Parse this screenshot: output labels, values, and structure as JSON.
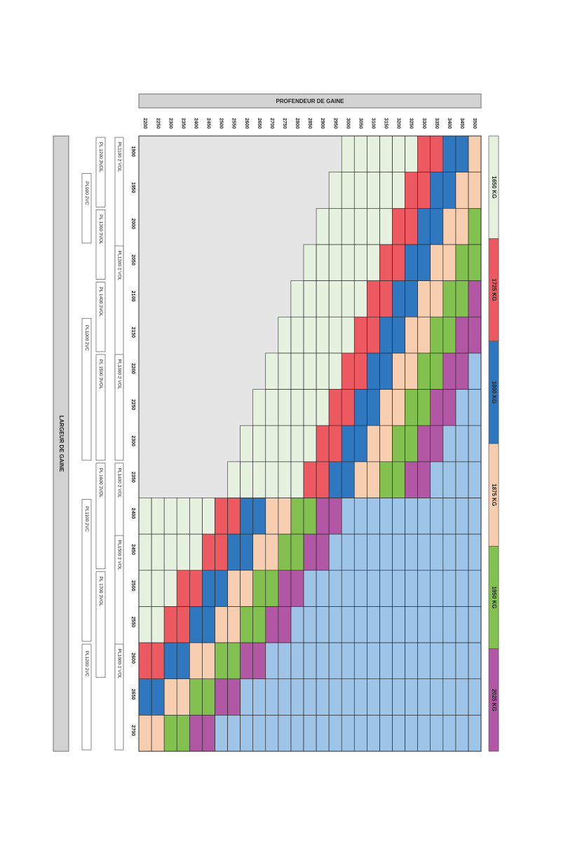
{
  "chart_data": {
    "type": "heatmap",
    "title": "PROFENDEUR DE GAINE",
    "xlabel": "LARGEUR DE GAINE",
    "ylabel": "PROFENDEUR DE GAINE",
    "x_ticks": [
      "1900",
      "1950",
      "2000",
      "2050",
      "2100",
      "2150",
      "2200",
      "2250",
      "2300",
      "2350",
      "2400",
      "2450",
      "2500",
      "2550",
      "2600",
      "2650",
      "2700"
    ],
    "y_ticks": [
      "2200",
      "2250",
      "2300",
      "2350",
      "2400",
      "2450",
      "2500",
      "2550",
      "2600",
      "2650",
      "2700",
      "2750",
      "2800",
      "2850",
      "2900",
      "2950",
      "3000",
      "3050",
      "3100",
      "3150",
      "3200",
      "3250",
      "3300",
      "3350",
      "3400",
      "3450",
      "3500"
    ],
    "legend": [
      {
        "label": "1650 KG",
        "color": "#e6f1e0"
      },
      {
        "label": "1725 KG",
        "color": "#ec5960"
      },
      {
        "label": "1800 KG",
        "color": "#2f78bf"
      },
      {
        "label": "1875 KG",
        "color": "#f8ceb0"
      },
      {
        "label": "1950 KG",
        "color": "#82c14f"
      },
      {
        "label": "2025 KG",
        "color": "#b257a4"
      }
    ],
    "colors": {
      "empty": "#e5e5e6",
      "beyond": "#9ec4e8",
      "grid": "#2a2a2a",
      "banner": "#d2d2d3"
    },
    "platform_bars": [
      {
        "label": "PL1100 2 VOL",
        "start": "1900",
        "end": "2050",
        "row": 0
      },
      {
        "label": "PL1200 2 VOL",
        "start": "2050",
        "end": "2200",
        "row": 0
      },
      {
        "label": "PL1300 2 VOL",
        "start": "2200",
        "end": "2300",
        "row": 0
      },
      {
        "label": "PL1400 2 VOL",
        "start": "2350",
        "end": "2450",
        "row": 0
      },
      {
        "label": "PL1500 2 VOL",
        "start": "2450",
        "end": "2600",
        "row": 0
      },
      {
        "label": "PL1600 2 VOL",
        "start": "2600",
        "end": "2700",
        "row": 0
      },
      {
        "label": "PL 1200 3VOL",
        "start": "1900",
        "end": "1950",
        "row": 1
      },
      {
        "label": "PL 1300 3VOL",
        "start": "2000",
        "end": "2050",
        "row": 1
      },
      {
        "label": "PL 1400 3VOL",
        "start": "2100",
        "end": "2150",
        "row": 1
      },
      {
        "label": "PL 1500 3VOL",
        "start": "2200",
        "end": "2300",
        "row": 1
      },
      {
        "label": "PL 1600 3VOL",
        "start": "2350",
        "end": "2450",
        "row": 1
      },
      {
        "label": "PL 1700 3VOL",
        "start": "2500",
        "end": "2600",
        "row": 1
      },
      {
        "label": "PL900 2VC",
        "start": "1950",
        "end": "2000",
        "row": 2
      },
      {
        "label": "PL1000 2VC",
        "start": "2150",
        "end": "2300",
        "row": 2
      },
      {
        "label": "PL1100 2VC",
        "start": "2400",
        "end": "2550",
        "row": 2
      },
      {
        "label": "PL1200 2VC",
        "start": "2600",
        "end": "2700",
        "row": 2
      }
    ]
  }
}
